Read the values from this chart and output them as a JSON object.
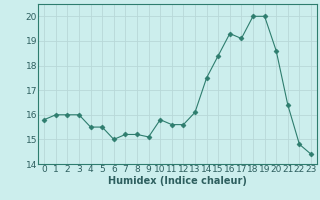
{
  "xlabel": "Humidex (Indice chaleur)",
  "ylabel": "",
  "x": [
    0,
    1,
    2,
    3,
    4,
    5,
    6,
    7,
    8,
    9,
    10,
    11,
    12,
    13,
    14,
    15,
    16,
    17,
    18,
    19,
    20,
    21,
    22,
    23
  ],
  "y": [
    15.8,
    16.0,
    16.0,
    16.0,
    15.5,
    15.5,
    15.0,
    15.2,
    15.2,
    15.1,
    15.8,
    15.6,
    15.6,
    16.1,
    17.5,
    18.4,
    19.3,
    19.1,
    20.0,
    20.0,
    18.6,
    16.4,
    14.8,
    14.4
  ],
  "ylim": [
    14,
    20.5
  ],
  "yticks": [
    14,
    15,
    16,
    17,
    18,
    19,
    20
  ],
  "xticks": [
    0,
    1,
    2,
    3,
    4,
    5,
    6,
    7,
    8,
    9,
    10,
    11,
    12,
    13,
    14,
    15,
    16,
    17,
    18,
    19,
    20,
    21,
    22,
    23
  ],
  "line_color": "#2e7d6e",
  "marker": "D",
  "marker_size": 2.5,
  "bg_color": "#cceeed",
  "grid_color_major": "#b8d8d8",
  "grid_color_minor": "#d4e8e8",
  "axes_color": "#2e7d6e",
  "tick_label_color": "#2e5f5f",
  "xlabel_fontsize": 7,
  "tick_fontsize": 6.5
}
